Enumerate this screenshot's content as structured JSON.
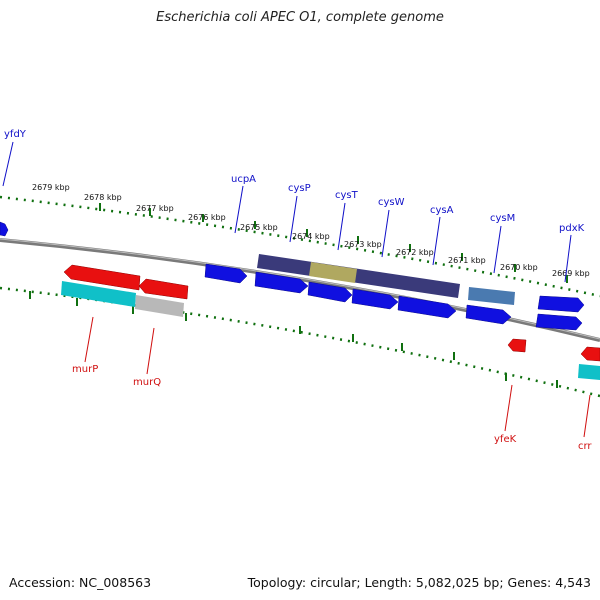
{
  "title": "Escherichia coli APEC O1, complete genome",
  "accession": "Accession: NC_008563",
  "topology": "Topology: circular; Length: 5,082,025 bp; Genes: 4,543",
  "colors": {
    "forward_gene": "#1010e0",
    "reverse_gene": "#e81010",
    "forward_label": "#1010c8",
    "reverse_label": "#d01010",
    "tick": "#107010",
    "backbone": "#808080",
    "operon_dark": "#3a3a7a",
    "operon_tan": "#b0a860",
    "steelblue": "#4a7ab0",
    "cyan": "#10c0c8",
    "gray": "#b8b8b8"
  },
  "kbp_labels": [
    "2679 kbp",
    "2678 kbp",
    "2677 kbp",
    "2676 kbp",
    "2675 kbp",
    "2674 kbp",
    "2673 kbp",
    "2672 kbp",
    "2671 kbp",
    "2670 kbp",
    "2669 kbp"
  ],
  "forward_genes": [
    "yfdY",
    "ucpA",
    "cysP",
    "cysT",
    "cysW",
    "cysA",
    "cysM",
    "pdxK"
  ],
  "reverse_genes": [
    "murP",
    "murQ",
    "yfeK",
    "crr"
  ]
}
